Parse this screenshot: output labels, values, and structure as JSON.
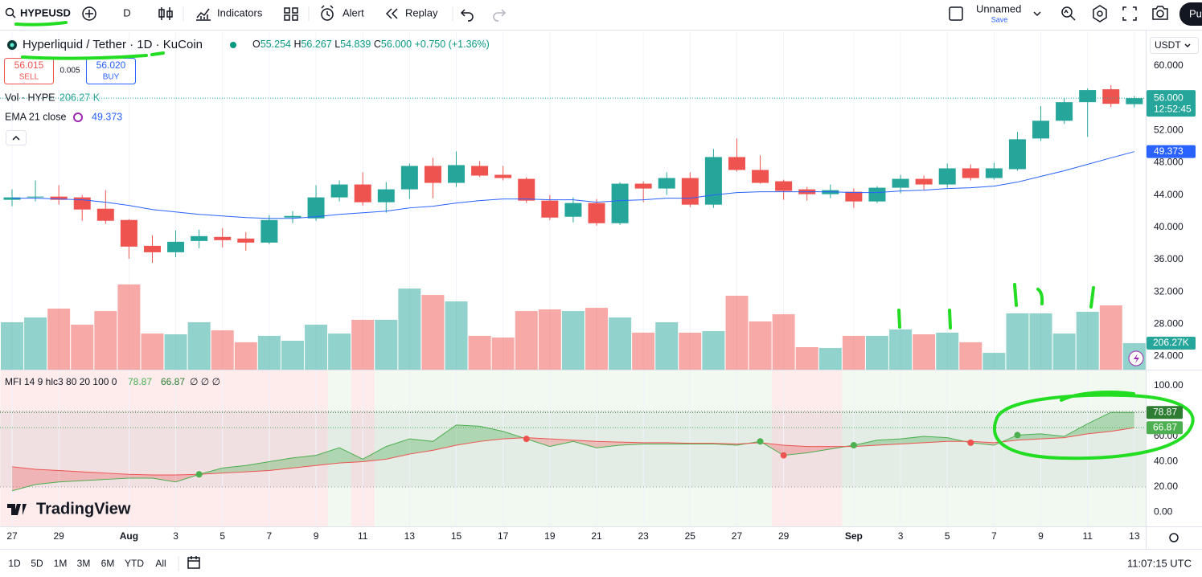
{
  "toolbar": {
    "symbol": "HYPEUSD",
    "interval": "D",
    "indicators": "Indicators",
    "alert": "Alert",
    "replay": "Replay",
    "layout": "Unnamed",
    "save": "Save",
    "publish": "Pu"
  },
  "legend": {
    "ohlc": [
      [
        "O",
        "55.254"
      ],
      [
        "H",
        "56.267"
      ],
      [
        "L",
        "54.839"
      ],
      [
        "C",
        "56.000"
      ]
    ],
    "change": "+0.750 (+1.36%)",
    "sell": "56.015",
    "sell_label": "SELL",
    "spread": "0.005",
    "buy": "56.020",
    "buy_label": "BUY"
  },
  "chart_data": [
    {
      "type": "candlestick",
      "title": "Hyperliquid / Tether · 1D · KuCoin",
      "unit": "USDT",
      "countdown": "12:52:45",
      "categories": [
        "27",
        null,
        "29",
        null,
        null,
        "Aug",
        null,
        "3",
        null,
        "5",
        null,
        "7",
        null,
        "9",
        null,
        "11",
        null,
        "13",
        null,
        "15",
        null,
        "17",
        null,
        "19",
        null,
        "21",
        null,
        "23",
        null,
        "25",
        null,
        "27",
        null,
        "29",
        null,
        null,
        "Sep",
        null,
        "3",
        null,
        "5",
        null,
        "7",
        null,
        "9",
        null,
        "11",
        null,
        "13"
      ],
      "open": [
        43.4,
        43.7,
        43.8,
        43.7,
        42.3,
        40.9,
        37.7,
        36.9,
        38.3,
        38.8,
        38.6,
        38.1,
        41.2,
        41.1,
        43.7,
        45.3,
        43.1,
        44.7,
        47.6,
        45.5,
        47.6,
        46.5,
        46.0,
        43.3,
        41.3,
        43.0,
        40.5,
        45.4,
        44.8,
        46.1,
        42.8,
        48.7,
        47.1,
        45.7,
        44.7,
        44.1,
        44.4,
        43.2,
        44.9,
        46.0,
        45.3,
        47.3,
        46.1,
        47.2,
        51.0,
        53.2,
        55.5,
        57.1,
        55.254
      ],
      "high": [
        44.7,
        45.8,
        45.2,
        44.0,
        44.6,
        41.0,
        39.0,
        39.6,
        39.7,
        39.9,
        39.4,
        41.5,
        42.0,
        45.2,
        45.8,
        46.8,
        45.6,
        47.9,
        48.6,
        49.4,
        48.2,
        47.6,
        46.2,
        44.0,
        43.7,
        43.5,
        45.6,
        45.7,
        46.8,
        46.8,
        49.7,
        51.0,
        48.9,
        45.9,
        45.0,
        45.3,
        44.8,
        45.1,
        46.5,
        46.4,
        47.9,
        47.8,
        48.0,
        51.8,
        55.0,
        56.0,
        57.2,
        57.6,
        56.267
      ],
      "low": [
        42.6,
        43.2,
        42.8,
        40.8,
        40.4,
        36.1,
        35.6,
        36.3,
        37.4,
        37.5,
        37.1,
        37.9,
        40.5,
        40.8,
        43.2,
        42.7,
        41.8,
        43.5,
        43.6,
        45.0,
        46.2,
        45.8,
        43.0,
        40.9,
        40.6,
        40.2,
        40.3,
        43.1,
        44.0,
        42.5,
        42.4,
        46.9,
        45.4,
        43.4,
        43.3,
        43.6,
        42.4,
        43.0,
        44.2,
        44.6,
        44.9,
        45.8,
        45.9,
        47.0,
        50.7,
        52.8,
        51.2,
        54.9,
        54.839
      ],
      "close": [
        43.7,
        43.8,
        43.4,
        42.2,
        40.8,
        37.6,
        36.9,
        38.2,
        38.9,
        38.4,
        38.1,
        40.9,
        41.4,
        43.7,
        45.3,
        43.1,
        44.7,
        47.6,
        45.5,
        47.7,
        46.4,
        46.1,
        43.3,
        41.2,
        43.0,
        40.5,
        45.4,
        44.8,
        46.1,
        42.8,
        48.7,
        47.1,
        45.5,
        44.5,
        44.1,
        44.6,
        43.2,
        44.9,
        46.0,
        45.3,
        47.3,
        46.1,
        47.3,
        50.9,
        53.2,
        55.5,
        57.0,
        55.3,
        56.0
      ],
      "up_color": "#26a69a",
      "down_color": "#ef5350",
      "ylim": [
        22.35,
        64.18
      ],
      "yticks": [
        {
          "value": 60,
          "label": "60.000"
        },
        {
          "value": 56,
          "label": "56.000"
        },
        {
          "value": 52,
          "label": "52.000"
        },
        {
          "value": 48,
          "label": "48.000"
        },
        {
          "value": 44,
          "label": "44.000"
        },
        {
          "value": 40,
          "label": "40.000"
        },
        {
          "value": 36,
          "label": "36.000"
        },
        {
          "value": 32,
          "label": "32.000"
        },
        {
          "value": 28,
          "label": "28.000"
        },
        {
          "value": 24,
          "label": "24.000"
        }
      ],
      "grid": true
    },
    {
      "type": "bar",
      "name": "Vol · HYPE",
      "legend_value": "206.27 K",
      "axis_label": "206.27K",
      "values": [
        369,
        406,
        475,
        350,
        456,
        663,
        281,
        275,
        369,
        306,
        213,
        263,
        225,
        350,
        281,
        388,
        388,
        631,
        581,
        531,
        263,
        250,
        456,
        469,
        456,
        481,
        406,
        288,
        369,
        288,
        300,
        575,
        375,
        431,
        175,
        169,
        263,
        263,
        313,
        275,
        288,
        213,
        131,
        438,
        438,
        281,
        450,
        500,
        206.27
      ],
      "ylim": [
        0,
        700
      ],
      "up_color": "rgba(38,166,154,0.5)",
      "down_color": "rgba(239,83,80,0.5)"
    },
    {
      "type": "line",
      "name": "EMA 21 close",
      "color": "#2962ff",
      "values": [
        43.6,
        43.6,
        43.5,
        43.4,
        43.1,
        42.7,
        42.2,
        41.9,
        41.6,
        41.4,
        41.2,
        41.1,
        41.1,
        41.3,
        41.6,
        41.8,
        42.0,
        42.4,
        42.6,
        43.0,
        43.3,
        43.5,
        43.5,
        43.4,
        43.4,
        43.1,
        43.3,
        43.4,
        43.6,
        43.6,
        44.0,
        44.3,
        44.4,
        44.4,
        44.4,
        44.4,
        44.3,
        44.3,
        44.5,
        44.6,
        44.8,
        44.9,
        45.1,
        45.6,
        46.3,
        47.0,
        47.8,
        48.6,
        49.373
      ]
    },
    {
      "type": "mfi",
      "title": "MFI 14 9 hlc3 80 20 100 0",
      "extra": "∅ ∅ ∅",
      "mfi": [
        17,
        22,
        24,
        25,
        26,
        27,
        27,
        24,
        30,
        35,
        37,
        40,
        43,
        45,
        51,
        42,
        52,
        58,
        56,
        69,
        68,
        64,
        58,
        52,
        56,
        51,
        53,
        54,
        54,
        54,
        54,
        53,
        56,
        45,
        47,
        50,
        53,
        57,
        58,
        60,
        59,
        55,
        53,
        61,
        62,
        60,
        70,
        79,
        78.87
      ],
      "signal": [
        36,
        34,
        33,
        32,
        31,
        30,
        29.5,
        29.5,
        30,
        31,
        32,
        33,
        35,
        37,
        39,
        40,
        42,
        46,
        49,
        53,
        56,
        58,
        59,
        58,
        57,
        56,
        55.5,
        55,
        55,
        54.5,
        54.5,
        54,
        55,
        53,
        52,
        52,
        52,
        53,
        54,
        55,
        56,
        56,
        55,
        57,
        58,
        59,
        62,
        64,
        66.87
      ],
      "bands": [
        80,
        20
      ],
      "midline": 50,
      "up_color": "#4caf50",
      "down_color": "#ef5350",
      "ylim": [
        -11.1,
        112.7
      ],
      "yticks": [
        {
          "value": 100,
          "label": "100.00"
        },
        {
          "value": 80,
          "label": "80.00"
        },
        {
          "value": 60,
          "label": "60.00"
        },
        {
          "value": 40,
          "label": "40.00"
        },
        {
          "value": 20,
          "label": "20.00"
        },
        {
          "value": 0,
          "label": "0.00"
        }
      ]
    }
  ],
  "logo": "TradingView",
  "bottom": {
    "ranges": [
      "1D",
      "5D",
      "1M",
      "3M",
      "6M",
      "YTD",
      "All"
    ],
    "time": "11:07:15 UTC"
  }
}
